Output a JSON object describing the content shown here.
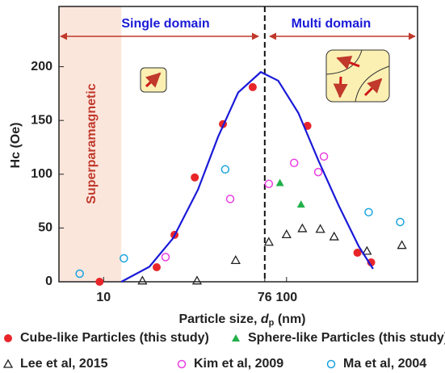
{
  "chart_data": {
    "type": "scatter",
    "xlabel": [
      "Particle size, ",
      "d",
      "p",
      " (nm)"
    ],
    "ylabel": "Hc (Oe)",
    "xscale": "log",
    "xlim": [
      5.7,
      520
    ],
    "ylim": [
      0,
      256
    ],
    "xticks": [
      10,
      76,
      100
    ],
    "yticks": [
      0,
      50,
      100,
      150,
      200
    ],
    "divider_x": 76,
    "shaded_xrange": [
      5.7,
      12.5
    ],
    "annotations": {
      "single": "Single domain",
      "multi": "Multi domain",
      "super": "Superparamagnetic"
    },
    "series": [
      {
        "name": "Cube-like Particles (this study)",
        "marker": "filled-circle",
        "color": "#e8262a",
        "x": [
          9.5,
          19.5,
          24.4,
          31.5,
          44.9,
          65.3,
          130,
          244,
          290
        ],
        "values": [
          0,
          13.5,
          43.6,
          97,
          146.6,
          181,
          145,
          27,
          18
        ]
      },
      {
        "name": "Sphere-like Particles (this study)",
        "marker": "filled-triangle",
        "color": "#22b04a",
        "x": [
          92,
          120
        ],
        "values": [
          92,
          72
        ]
      },
      {
        "name": "Lee et al, 2015",
        "marker": "open-triangle",
        "color": "#222222",
        "x": [
          16.3,
          32.4,
          52.7,
          80,
          100,
          122,
          153,
          182,
          275,
          427
        ],
        "values": [
          1,
          1,
          20,
          37,
          44,
          49.6,
          49,
          42,
          28.6,
          34
        ]
      },
      {
        "name": "Kim et al, 2009",
        "marker": "open-circle",
        "color": "#e83ee0",
        "x": [
          21.8,
          49.2,
          80,
          110,
          149,
          160
        ],
        "values": [
          23,
          77,
          91,
          110.5,
          102,
          116.5
        ]
      },
      {
        "name": "Ma et al, 2004",
        "marker": "open-circle",
        "color": "#1aa3e0",
        "x": [
          7.4,
          12.9,
          46.2,
          281,
          418
        ],
        "values": [
          7.5,
          21.8,
          104.5,
          64.7,
          55.6
        ]
      },
      {
        "marker": "line",
        "color": "#1a1ad8",
        "x": [
          12.5,
          17.8,
          24,
          32.8,
          42.2,
          54.4,
          72.3,
          90,
          116,
          150,
          193,
          248,
          297
        ],
        "values": [
          0,
          14,
          40.6,
          85.7,
          134.6,
          176,
          195,
          187,
          157,
          112,
          70.7,
          33,
          12
        ]
      }
    ]
  }
}
